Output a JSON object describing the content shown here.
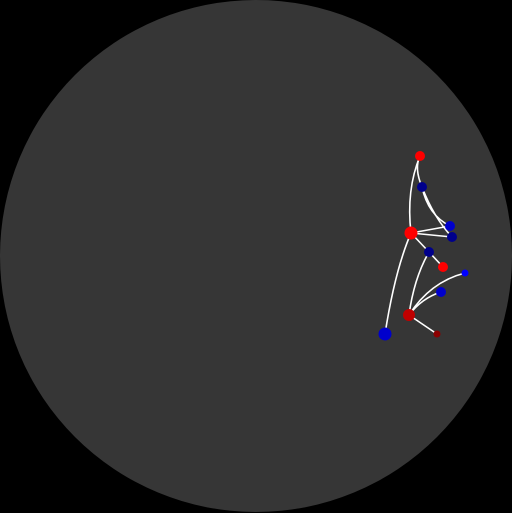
{
  "colors": {
    "background": "#000000",
    "disk": "#363636",
    "edge": "#ffffff",
    "red": "#ff0000",
    "dark_red": "#c00000",
    "maroon": "#8b0000",
    "blue": "#0000cc",
    "navy": "#00008b",
    "bright_blue": "#0000ff"
  },
  "nodes": [
    {
      "id": "n1",
      "color": "red",
      "size": "small"
    },
    {
      "id": "n2",
      "color": "navy",
      "size": "small"
    },
    {
      "id": "n3",
      "color": "blue",
      "size": "small"
    },
    {
      "id": "n4",
      "color": "red",
      "size": "large"
    },
    {
      "id": "n5",
      "color": "navy",
      "size": "small"
    },
    {
      "id": "n6",
      "color": "navy",
      "size": "small"
    },
    {
      "id": "n7",
      "color": "red",
      "size": "small"
    },
    {
      "id": "n8",
      "color": "bright_blue",
      "size": "tiny"
    },
    {
      "id": "n9",
      "color": "blue",
      "size": "small"
    },
    {
      "id": "n10",
      "color": "dark_red",
      "size": "medium"
    },
    {
      "id": "n11",
      "color": "blue",
      "size": "large"
    },
    {
      "id": "n12",
      "color": "maroon",
      "size": "tiny"
    }
  ],
  "edges": [
    {
      "from": "n1",
      "to": "n2"
    },
    {
      "from": "n1",
      "to": "n4"
    },
    {
      "from": "n2",
      "to": "n3"
    },
    {
      "from": "n2",
      "to": "n5"
    },
    {
      "from": "n4",
      "to": "n5"
    },
    {
      "from": "n4",
      "to": "n3"
    },
    {
      "from": "n4",
      "to": "n6"
    },
    {
      "from": "n4",
      "to": "n11"
    },
    {
      "from": "n6",
      "to": "n7"
    },
    {
      "from": "n6",
      "to": "n10"
    },
    {
      "from": "n10",
      "to": "n8"
    },
    {
      "from": "n10",
      "to": "n9"
    },
    {
      "from": "n10",
      "to": "n12"
    }
  ]
}
